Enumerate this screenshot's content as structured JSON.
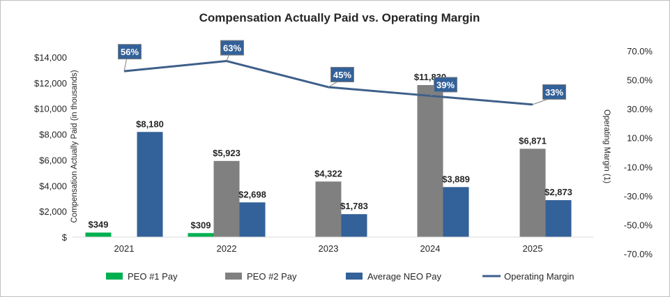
{
  "chart_data": {
    "type": "bar",
    "title": "Compensation Actually Paid vs. Operating Margin",
    "categories": [
      "2021",
      "2022",
      "2023",
      "2024",
      "2025"
    ],
    "ylabel": "Compensation Actually Paid (in thousands)",
    "y2label": "Operating Margin (1)",
    "ylim": [
      0,
      14000
    ],
    "y2lim": [
      -70,
      70
    ],
    "yticks": [
      "$",
      "$2,000",
      "$4,000",
      "$6,000",
      "$8,000",
      "$10,000",
      "$12,000",
      "$14,000"
    ],
    "y2ticks": [
      "-70.0%",
      "-50.0%",
      "-30.0%",
      "-10.0%",
      "10.0%",
      "30.0%",
      "50.0%",
      "70.0%"
    ],
    "series": [
      {
        "name": "PEO #1 Pay",
        "kind": "bar",
        "color": "#00b050",
        "values": [
          349,
          309,
          null,
          null,
          null
        ],
        "labels": [
          "$349",
          "$309",
          "",
          "",
          ""
        ]
      },
      {
        "name": "PEO #2 Pay",
        "kind": "bar",
        "color": "#808080",
        "values": [
          null,
          5923,
          4322,
          11830,
          6871
        ],
        "labels": [
          "",
          "$5,923",
          "$4,322",
          "$11,830",
          "$6,871"
        ]
      },
      {
        "name": "Average NEO Pay",
        "kind": "bar",
        "color": "#336199",
        "values": [
          8180,
          2698,
          1783,
          3889,
          2873
        ],
        "labels": [
          "$8,180",
          "$2,698",
          "$1,783",
          "$3,889",
          "$2,873"
        ]
      },
      {
        "name": "Operating Margin",
        "kind": "line",
        "axis": "right",
        "color": "#3e5f8a",
        "values": [
          56,
          63,
          45,
          39,
          33
        ],
        "labels": [
          "56%",
          "63%",
          "45%",
          "39%",
          "33%"
        ]
      }
    ],
    "grid": false,
    "legend": "bottom"
  }
}
